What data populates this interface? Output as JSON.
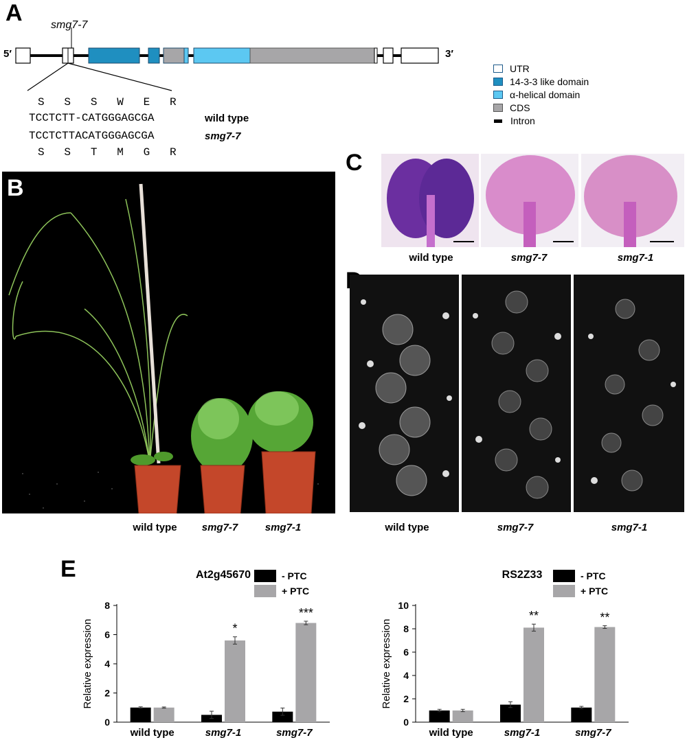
{
  "panelA": {
    "label": "A",
    "mutation_label": "smg7-7",
    "five_prime": "5′",
    "three_prime": "3′",
    "aa_wt": "S   S   S   W   E   R",
    "seq_wt": "TCCTCTT-CATGGGAGCGA",
    "seq_mut": "TCCTCTTACATGGGAGCGA",
    "aa_mut": "S   S   T   M   G   R",
    "wt_label": "wild type",
    "mut_label": "smg7-7",
    "legend": [
      {
        "label": "UTR",
        "color": "#ffffff"
      },
      {
        "label": "14-3-3 like domain",
        "color": "#1f8fc0"
      },
      {
        "label": "α-helical domain",
        "color": "#5cc8f2"
      },
      {
        "label": "CDS",
        "color": "#a7a6a8"
      },
      {
        "label": "Intron",
        "color": "#000000"
      }
    ]
  },
  "panelB": {
    "label": "B",
    "captions": [
      "wild type",
      "smg7-7",
      "smg7-1"
    ]
  },
  "panelC": {
    "label": "C",
    "captions": [
      "wild type",
      "smg7-7",
      "smg7-1"
    ]
  },
  "panelD": {
    "label": "D",
    "captions": [
      "wild type",
      "smg7-7",
      "smg7-1"
    ]
  },
  "panelE": {
    "label": "E"
  },
  "chart_data": [
    {
      "type": "bar",
      "title": "At2g45670",
      "ylabel": "Relative expression",
      "ylim": [
        0,
        8
      ],
      "yticks": [
        "0",
        "2",
        "4",
        "6",
        "8"
      ],
      "categories": [
        "wild type",
        "smg7-1",
        "smg7-7"
      ],
      "series": [
        {
          "name": "- PTC",
          "color": "#000000",
          "values": [
            1.0,
            0.5,
            0.72
          ],
          "errors": [
            0.05,
            0.25,
            0.25
          ]
        },
        {
          "name": "+ PTC",
          "color": "#a7a6a8",
          "values": [
            1.0,
            5.6,
            6.8
          ],
          "errors": [
            0.04,
            0.25,
            0.12
          ]
        }
      ],
      "significance": [
        "",
        "*",
        "***"
      ]
    },
    {
      "type": "bar",
      "title": "RS2Z33",
      "ylabel": "Relative expression",
      "ylim": [
        0,
        10
      ],
      "yticks": [
        "0",
        "2",
        "4",
        "6",
        "8",
        "10"
      ],
      "categories": [
        "wild type",
        "smg7-1",
        "smg7-7"
      ],
      "series": [
        {
          "name": "- PTC",
          "color": "#000000",
          "values": [
            1.0,
            1.5,
            1.25
          ],
          "errors": [
            0.1,
            0.25,
            0.1
          ]
        },
        {
          "name": "+ PTC",
          "color": "#a7a6a8",
          "values": [
            1.0,
            8.1,
            8.15
          ],
          "errors": [
            0.1,
            0.3,
            0.12
          ]
        }
      ],
      "significance": [
        "",
        "**",
        "**"
      ]
    }
  ]
}
